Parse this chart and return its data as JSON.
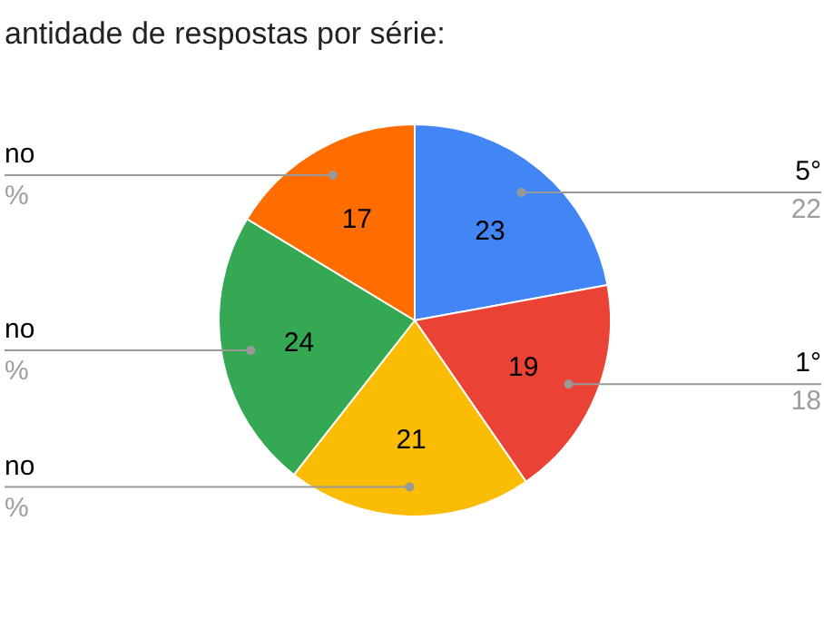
{
  "chart_data": {
    "type": "pie",
    "title": "antidade de respostas por série:",
    "categories": [
      "5°",
      "1°",
      "no",
      "no",
      "no"
    ],
    "values": [
      23,
      19,
      21,
      24,
      17
    ],
    "colors": [
      "#4285f4",
      "#ea4335",
      "#fbbc04",
      "#34a853",
      "#ff6d01"
    ],
    "data_labels": true,
    "annotations": [
      "22",
      "18",
      "%",
      "%",
      "%"
    ]
  }
}
